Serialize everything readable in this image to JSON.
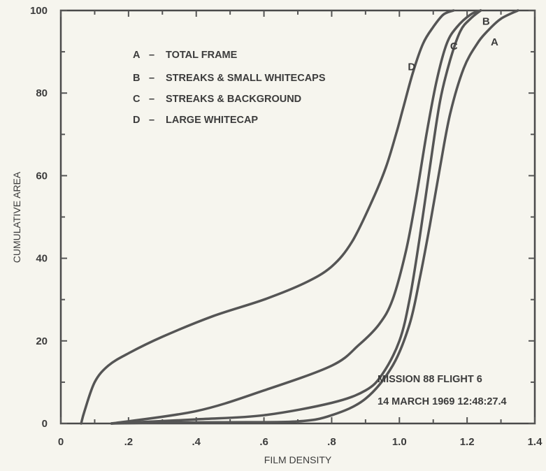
{
  "chart_data": {
    "type": "line",
    "xlabel": "FILM DENSITY",
    "ylabel": "CUMULATIVE AREA",
    "xlim": [
      0,
      1.4
    ],
    "ylim": [
      0,
      100
    ],
    "xticks": [
      {
        "value": 0,
        "label": "0"
      },
      {
        "value": 0.2,
        "label": ".2"
      },
      {
        "value": 0.4,
        "label": ".4"
      },
      {
        "value": 0.6,
        "label": ".6"
      },
      {
        "value": 0.8,
        "label": ".8"
      },
      {
        "value": 1.0,
        "label": "1.0"
      },
      {
        "value": 1.2,
        "label": "1.2"
      },
      {
        "value": 1.4,
        "label": "1.4"
      }
    ],
    "yticks": [
      {
        "value": 0,
        "label": "0"
      },
      {
        "value": 20,
        "label": "20"
      },
      {
        "value": 40,
        "label": "40"
      },
      {
        "value": 60,
        "label": "60"
      },
      {
        "value": 80,
        "label": "80"
      },
      {
        "value": 100,
        "label": "100"
      }
    ],
    "grid": false,
    "line_color": "#555555",
    "legend": [
      {
        "key": "A",
        "dash": "–",
        "text": "TOTAL FRAME"
      },
      {
        "key": "B",
        "dash": "–",
        "text": "STREAKS & SMALL WHITECAPS"
      },
      {
        "key": "C",
        "dash": "–",
        "text": "STREAKS & BACKGROUND"
      },
      {
        "key": "D",
        "dash": "–",
        "text": "LARGE WHITECAP"
      }
    ],
    "series": [
      {
        "name": "A",
        "x": [
          0.15,
          0.3,
          0.5,
          0.7,
          0.8,
          0.9,
          0.98,
          1.03,
          1.06,
          1.09,
          1.12,
          1.15,
          1.19,
          1.23,
          1.26,
          1.3,
          1.35
        ],
        "y": [
          0,
          0.2,
          0.3,
          0.5,
          2,
          6,
          14,
          24,
          35,
          48,
          62,
          75,
          86,
          92,
          95,
          98,
          100
        ]
      },
      {
        "name": "B",
        "x": [
          0.15,
          0.4,
          0.6,
          0.8,
          0.9,
          0.95,
          1.0,
          1.03,
          1.06,
          1.09,
          1.12,
          1.15,
          1.18,
          1.21,
          1.24
        ],
        "y": [
          0,
          1,
          2,
          5,
          8,
          12,
          20,
          30,
          45,
          62,
          78,
          88,
          95,
          98,
          100
        ]
      },
      {
        "name": "C",
        "x": [
          0.15,
          0.4,
          0.6,
          0.8,
          0.88,
          0.94,
          0.98,
          1.02,
          1.05,
          1.08,
          1.11,
          1.14,
          1.17,
          1.21,
          1.24
        ],
        "y": [
          0,
          3,
          8,
          14,
          19,
          24,
          30,
          42,
          55,
          70,
          83,
          92,
          96,
          99,
          100
        ]
      },
      {
        "name": "D",
        "x": [
          0.06,
          0.07,
          0.1,
          0.14,
          0.2,
          0.3,
          0.45,
          0.6,
          0.72,
          0.8,
          0.86,
          0.92,
          0.96,
          0.99,
          1.01,
          1.04,
          1.07,
          1.1,
          1.13,
          1.16
        ],
        "y": [
          0,
          3,
          10,
          14,
          17,
          21,
          26,
          30,
          34,
          38,
          44,
          54,
          62,
          70,
          76,
          85,
          92,
          96,
          99,
          100
        ]
      }
    ],
    "curve_labels": [
      {
        "series": "A",
        "text": "A",
        "x": 1.27,
        "y": 91.5
      },
      {
        "series": "B",
        "text": "B",
        "x": 1.245,
        "y": 96.5
      },
      {
        "series": "C",
        "text": "C",
        "x": 1.15,
        "y": 90.5
      },
      {
        "series": "D",
        "text": "D",
        "x": 1.025,
        "y": 85.5
      }
    ],
    "annotations": [
      "MISSION 88  FLIGHT 6",
      "14 MARCH 1969  12:48:27.4"
    ]
  }
}
